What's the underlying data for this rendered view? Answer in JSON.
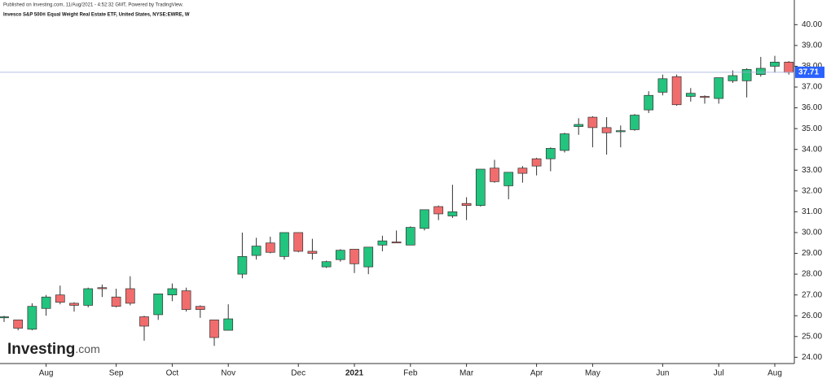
{
  "chart_data": {
    "type": "candlestick",
    "published": "Published on Investing.com, 11/Aug/2021 - 4:52:32 GMT, Powered by TradingView.",
    "title": "Invesco S&P 500® Equal Weight Real Estate ETF, United States, NYSE:EWRE, W",
    "logo": {
      "name": "Investing",
      "suffix": ".com"
    },
    "categories": [
      null,
      null,
      null,
      "Aug",
      null,
      null,
      null,
      null,
      "Sep",
      null,
      null,
      null,
      "Oct",
      null,
      null,
      null,
      "Nov",
      null,
      null,
      null,
      null,
      "Dec",
      null,
      null,
      null,
      "2021",
      null,
      null,
      null,
      "Feb",
      null,
      null,
      null,
      "Mar",
      null,
      null,
      null,
      null,
      "Apr",
      null,
      null,
      null,
      "May",
      null,
      null,
      null,
      null,
      "Jun",
      null,
      null,
      null,
      "Jul",
      null,
      null,
      null,
      "Aug",
      null
    ],
    "open": [
      25.9,
      25.8,
      25.35,
      26.35,
      27.0,
      26.6,
      26.5,
      27.35,
      26.9,
      27.3,
      25.95,
      26.05,
      27.0,
      27.2,
      26.45,
      25.8,
      25.3,
      28.0,
      28.9,
      29.5,
      28.85,
      30.0,
      29.1,
      28.35,
      28.7,
      29.2,
      28.35,
      29.4,
      29.55,
      29.4,
      30.2,
      31.25,
      30.8,
      31.4,
      31.3,
      33.1,
      32.25,
      33.1,
      33.55,
      33.55,
      33.95,
      35.1,
      35.55,
      35.05,
      34.85,
      34.95,
      35.9,
      36.75,
      37.5,
      36.55,
      36.55,
      36.45,
      37.3,
      37.3,
      37.6,
      38.0,
      38.2
    ],
    "high": [
      26.0,
      25.8,
      26.6,
      27.0,
      27.45,
      26.65,
      27.35,
      27.5,
      27.3,
      27.9,
      26.0,
      27.05,
      27.55,
      27.35,
      26.5,
      25.8,
      26.55,
      30.0,
      29.75,
      29.8,
      30.0,
      30.0,
      29.7,
      28.65,
      29.2,
      29.2,
      29.3,
      29.85,
      30.1,
      30.3,
      31.1,
      31.3,
      32.3,
      31.7,
      33.05,
      33.5,
      32.9,
      33.2,
      33.6,
      34.1,
      34.8,
      35.5,
      35.6,
      35.55,
      35.15,
      35.7,
      36.8,
      37.6,
      37.6,
      36.95,
      36.6,
      37.45,
      37.8,
      37.9,
      38.45,
      38.5,
      38.25
    ],
    "low": [
      25.7,
      25.3,
      25.3,
      26.0,
      26.55,
      26.2,
      26.4,
      26.9,
      26.4,
      26.5,
      24.8,
      25.8,
      26.7,
      26.2,
      25.9,
      24.55,
      25.3,
      27.8,
      28.7,
      29.0,
      28.7,
      29.05,
      28.7,
      28.3,
      28.6,
      28.05,
      28.0,
      29.1,
      29.5,
      29.4,
      30.1,
      30.6,
      30.7,
      30.6,
      31.25,
      32.4,
      31.6,
      32.4,
      32.75,
      32.95,
      33.85,
      34.7,
      34.1,
      33.75,
      34.1,
      34.9,
      35.75,
      36.6,
      36.1,
      36.3,
      36.2,
      36.2,
      37.2,
      36.5,
      37.5,
      37.7,
      37.6
    ],
    "close": [
      25.95,
      25.4,
      26.45,
      26.9,
      26.65,
      26.5,
      27.3,
      27.3,
      26.45,
      26.6,
      25.5,
      27.05,
      27.3,
      26.3,
      26.3,
      24.95,
      25.85,
      28.85,
      29.35,
      29.05,
      30.0,
      29.1,
      29.0,
      28.6,
      29.15,
      28.5,
      29.3,
      29.6,
      29.5,
      30.25,
      31.1,
      30.9,
      31.0,
      31.3,
      33.05,
      32.45,
      32.9,
      32.85,
      33.2,
      34.05,
      34.75,
      35.2,
      35.05,
      34.8,
      34.9,
      35.65,
      36.6,
      37.4,
      36.15,
      36.7,
      36.5,
      37.45,
      37.55,
      37.85,
      37.9,
      38.2,
      37.71
    ],
    "up_color": "#22c47e",
    "down_color": "#f16d6d",
    "outline_color": "#333333",
    "last_price_color": "#2962ff",
    "ylim": [
      23.7,
      40.6
    ],
    "yticks": [
      {
        "value": 24,
        "label": "24.00"
      },
      {
        "value": 25,
        "label": "25.00"
      },
      {
        "value": 26,
        "label": "26.00"
      },
      {
        "value": 27,
        "label": "27.00"
      },
      {
        "value": 28,
        "label": "28.00"
      },
      {
        "value": 29,
        "label": "29.00"
      },
      {
        "value": 30,
        "label": "30.00"
      },
      {
        "value": 31,
        "label": "31.00"
      },
      {
        "value": 32,
        "label": "32.00"
      },
      {
        "value": 33,
        "label": "33.00"
      },
      {
        "value": 34,
        "label": "34.00"
      },
      {
        "value": 35,
        "label": "35.00"
      },
      {
        "value": 36,
        "label": "36.00"
      },
      {
        "value": 37,
        "label": "37.00"
      },
      {
        "value": 38,
        "label": "38.00"
      },
      {
        "value": 39,
        "label": "39.00"
      },
      {
        "value": 40,
        "label": "40.00"
      }
    ],
    "bold_category": "2021"
  }
}
